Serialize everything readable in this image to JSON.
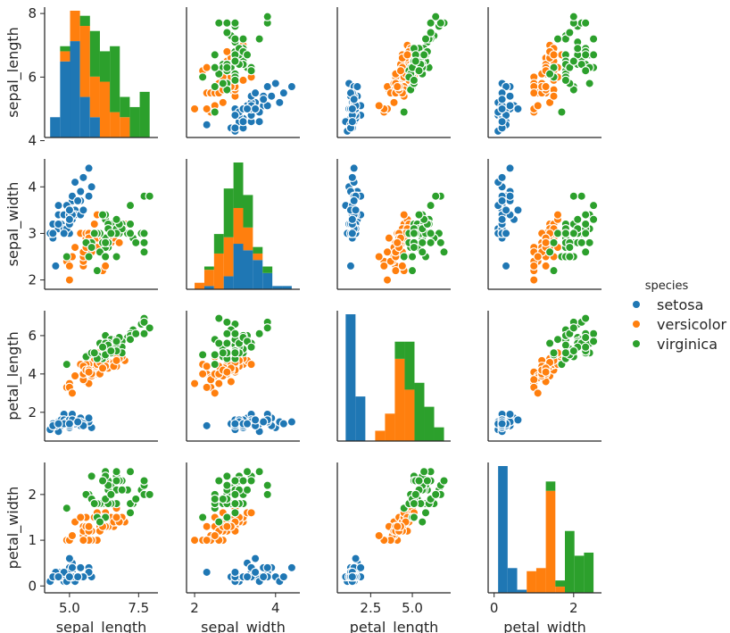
{
  "chart_data": {
    "type": "scatter",
    "kind": "pairplot",
    "hue": "species",
    "variables": [
      "sepal_length",
      "sepal_width",
      "petal_length",
      "petal_width"
    ],
    "legend": {
      "title": "species",
      "placement": "right",
      "entries": [
        {
          "name": "setosa",
          "color": "#1f77b4"
        },
        {
          "name": "versicolor",
          "color": "#ff7f0e"
        },
        {
          "name": "virginica",
          "color": "#2ca02c"
        }
      ]
    },
    "axes": {
      "sepal_length": {
        "range": [
          4.1,
          8.2
        ],
        "ticks": [
          4,
          6,
          8
        ],
        "tick_labels": [
          "4",
          "6",
          "8"
        ],
        "x_ticks": [
          5.0,
          7.5
        ],
        "x_tick_labels": [
          "5.0",
          "7.5"
        ]
      },
      "sepal_width": {
        "range": [
          1.8,
          4.6
        ],
        "ticks": [
          2,
          3,
          4
        ],
        "tick_labels": [
          "2",
          "3",
          "4"
        ],
        "x_ticks": [
          2,
          4
        ],
        "x_tick_labels": [
          "2",
          "4"
        ]
      },
      "petal_length": {
        "range": [
          0.5,
          7.3
        ],
        "ticks": [
          2,
          4,
          6
        ],
        "tick_labels": [
          "2",
          "4",
          "6"
        ],
        "x_ticks": [
          2.5,
          5.0
        ],
        "x_tick_labels": [
          "2.5",
          "5.0"
        ]
      },
      "petal_width": {
        "range": [
          -0.15,
          2.7
        ],
        "ticks": [
          0,
          1,
          2
        ],
        "tick_labels": [
          "0",
          "1",
          "2"
        ],
        "x_ticks": [
          0,
          2
        ],
        "x_tick_labels": [
          "0",
          "2"
        ]
      }
    },
    "grid": false,
    "histograms": {
      "sepal_length": {
        "bins": [
          4.3,
          4.66,
          5.02,
          5.38,
          5.74,
          6.1,
          6.46,
          6.82,
          7.18,
          7.54,
          7.9
        ],
        "series": [
          {
            "name": "setosa",
            "counts": [
              4,
              15,
              19,
              8,
              4,
              0,
              0,
              0,
              0,
              0
            ]
          },
          {
            "name": "versicolor",
            "counts": [
              0,
              2,
              6,
              14,
              8,
              11,
              5,
              4,
              0,
              0
            ]
          },
          {
            "name": "virginica",
            "counts": [
              0,
              1,
              0,
              2,
              9,
              6,
              13,
              4,
              6,
              9
            ]
          }
        ]
      },
      "sepal_width": {
        "bins": [
          2.0,
          2.24,
          2.48,
          2.72,
          2.96,
          3.2,
          3.44,
          3.68,
          3.92,
          4.16,
          4.4
        ],
        "series": [
          {
            "name": "setosa",
            "counts": [
              0,
              1,
              0,
              4,
              14,
              12,
              9,
              5,
              1,
              1
            ]
          },
          {
            "name": "versicolor",
            "counts": [
              2,
              5,
              11,
              12,
              11,
              7,
              2,
              0,
              0,
              0
            ]
          },
          {
            "name": "virginica",
            "counts": [
              0,
              1,
              6,
              15,
              14,
              10,
              2,
              2,
              0,
              0
            ]
          }
        ]
      },
      "petal_length": {
        "bins": [
          1.0,
          1.59,
          2.18,
          2.77,
          3.36,
          3.95,
          4.54,
          5.13,
          5.72,
          6.31,
          6.9
        ],
        "series": [
          {
            "name": "setosa",
            "counts": [
              37,
              13,
              0,
              0,
              0,
              0,
              0,
              0,
              0,
              0
            ]
          },
          {
            "name": "versicolor",
            "counts": [
              0,
              0,
              0,
              3,
              8,
              24,
              15,
              0,
              0,
              0
            ]
          },
          {
            "name": "virginica",
            "counts": [
              0,
              0,
              0,
              0,
              0,
              5,
              14,
              17,
              10,
              4
            ]
          }
        ]
      },
      "petal_width": {
        "bins": [
          0.1,
          0.34,
          0.58,
          0.82,
          1.06,
          1.3,
          1.54,
          1.78,
          2.02,
          2.26,
          2.5
        ],
        "series": [
          {
            "name": "setosa",
            "counts": [
              41,
              8,
              1,
              0,
              0,
              0,
              0,
              0,
              0,
              0
            ]
          },
          {
            "name": "versicolor",
            "counts": [
              0,
              0,
              0,
              7,
              8,
              33,
              2,
              0,
              0,
              0
            ]
          },
          {
            "name": "virginica",
            "counts": [
              0,
              0,
              0,
              0,
              0,
              3,
              2,
              20,
              12,
              13
            ]
          }
        ]
      }
    },
    "points": {
      "setosa": [
        [
          5.1,
          3.5,
          1.4,
          0.2
        ],
        [
          4.9,
          3.0,
          1.4,
          0.2
        ],
        [
          4.7,
          3.2,
          1.3,
          0.2
        ],
        [
          4.6,
          3.1,
          1.5,
          0.2
        ],
        [
          5.0,
          3.6,
          1.4,
          0.2
        ],
        [
          5.4,
          3.9,
          1.7,
          0.4
        ],
        [
          4.6,
          3.4,
          1.4,
          0.3
        ],
        [
          5.0,
          3.4,
          1.5,
          0.2
        ],
        [
          4.4,
          2.9,
          1.4,
          0.2
        ],
        [
          4.9,
          3.1,
          1.5,
          0.1
        ],
        [
          5.4,
          3.7,
          1.5,
          0.2
        ],
        [
          4.8,
          3.4,
          1.6,
          0.2
        ],
        [
          4.8,
          3.0,
          1.4,
          0.1
        ],
        [
          4.3,
          3.0,
          1.1,
          0.1
        ],
        [
          5.8,
          4.0,
          1.2,
          0.2
        ],
        [
          5.7,
          4.4,
          1.5,
          0.4
        ],
        [
          5.4,
          3.9,
          1.3,
          0.4
        ],
        [
          5.1,
          3.5,
          1.4,
          0.3
        ],
        [
          5.7,
          3.8,
          1.7,
          0.3
        ],
        [
          5.1,
          3.8,
          1.5,
          0.3
        ],
        [
          5.4,
          3.4,
          1.7,
          0.2
        ],
        [
          5.1,
          3.7,
          1.5,
          0.4
        ],
        [
          4.6,
          3.6,
          1.0,
          0.2
        ],
        [
          5.1,
          3.3,
          1.7,
          0.5
        ],
        [
          4.8,
          3.4,
          1.9,
          0.2
        ],
        [
          5.0,
          3.0,
          1.6,
          0.2
        ],
        [
          5.0,
          3.4,
          1.6,
          0.4
        ],
        [
          5.2,
          3.5,
          1.5,
          0.2
        ],
        [
          5.2,
          3.4,
          1.4,
          0.2
        ],
        [
          4.7,
          3.2,
          1.6,
          0.2
        ],
        [
          4.8,
          3.1,
          1.6,
          0.2
        ],
        [
          5.4,
          3.4,
          1.5,
          0.4
        ],
        [
          5.2,
          4.1,
          1.5,
          0.1
        ],
        [
          5.5,
          4.2,
          1.4,
          0.2
        ],
        [
          4.9,
          3.1,
          1.5,
          0.2
        ],
        [
          5.0,
          3.2,
          1.2,
          0.2
        ],
        [
          5.5,
          3.5,
          1.3,
          0.2
        ],
        [
          4.9,
          3.6,
          1.4,
          0.1
        ],
        [
          4.4,
          3.0,
          1.3,
          0.2
        ],
        [
          5.1,
          3.4,
          1.5,
          0.2
        ],
        [
          5.0,
          3.5,
          1.3,
          0.3
        ],
        [
          4.5,
          2.3,
          1.3,
          0.3
        ],
        [
          4.4,
          3.2,
          1.3,
          0.2
        ],
        [
          5.0,
          3.5,
          1.6,
          0.6
        ],
        [
          5.1,
          3.8,
          1.9,
          0.4
        ],
        [
          4.8,
          3.0,
          1.4,
          0.3
        ],
        [
          5.1,
          3.8,
          1.6,
          0.2
        ],
        [
          4.6,
          3.2,
          1.4,
          0.2
        ],
        [
          5.3,
          3.7,
          1.5,
          0.2
        ],
        [
          5.0,
          3.3,
          1.4,
          0.2
        ]
      ],
      "versicolor": [
        [
          7.0,
          3.2,
          4.7,
          1.4
        ],
        [
          6.4,
          3.2,
          4.5,
          1.5
        ],
        [
          6.9,
          3.1,
          4.9,
          1.5
        ],
        [
          5.5,
          2.3,
          4.0,
          1.3
        ],
        [
          6.5,
          2.8,
          4.6,
          1.5
        ],
        [
          5.7,
          2.8,
          4.5,
          1.3
        ],
        [
          6.3,
          3.3,
          4.7,
          1.6
        ],
        [
          4.9,
          2.4,
          3.3,
          1.0
        ],
        [
          6.6,
          2.9,
          4.6,
          1.3
        ],
        [
          5.2,
          2.7,
          3.9,
          1.4
        ],
        [
          5.0,
          2.0,
          3.5,
          1.0
        ],
        [
          5.9,
          3.0,
          4.2,
          1.5
        ],
        [
          6.0,
          2.2,
          4.0,
          1.0
        ],
        [
          6.1,
          2.9,
          4.7,
          1.4
        ],
        [
          5.6,
          2.9,
          3.6,
          1.3
        ],
        [
          6.7,
          3.1,
          4.4,
          1.4
        ],
        [
          5.6,
          3.0,
          4.5,
          1.5
        ],
        [
          5.8,
          2.7,
          4.1,
          1.0
        ],
        [
          6.2,
          2.2,
          4.5,
          1.5
        ],
        [
          5.6,
          2.5,
          3.9,
          1.1
        ],
        [
          5.9,
          3.2,
          4.8,
          1.8
        ],
        [
          6.1,
          2.8,
          4.0,
          1.3
        ],
        [
          6.3,
          2.5,
          4.9,
          1.5
        ],
        [
          6.1,
          2.8,
          4.7,
          1.2
        ],
        [
          6.4,
          2.9,
          4.3,
          1.3
        ],
        [
          6.6,
          3.0,
          4.4,
          1.4
        ],
        [
          6.8,
          2.8,
          4.8,
          1.4
        ],
        [
          6.7,
          3.0,
          5.0,
          1.7
        ],
        [
          6.0,
          2.9,
          4.5,
          1.5
        ],
        [
          5.7,
          2.6,
          3.5,
          1.0
        ],
        [
          5.5,
          2.4,
          3.8,
          1.1
        ],
        [
          5.5,
          2.4,
          3.7,
          1.0
        ],
        [
          5.8,
          2.7,
          3.9,
          1.2
        ],
        [
          6.0,
          2.7,
          5.1,
          1.6
        ],
        [
          5.4,
          3.0,
          4.5,
          1.5
        ],
        [
          6.0,
          3.4,
          4.5,
          1.6
        ],
        [
          6.7,
          3.1,
          4.7,
          1.5
        ],
        [
          6.3,
          2.3,
          4.4,
          1.3
        ],
        [
          5.6,
          3.0,
          4.1,
          1.3
        ],
        [
          5.5,
          2.5,
          4.0,
          1.3
        ],
        [
          5.5,
          2.6,
          4.4,
          1.2
        ],
        [
          6.1,
          3.0,
          4.6,
          1.4
        ],
        [
          5.8,
          2.6,
          4.0,
          1.2
        ],
        [
          5.0,
          2.3,
          3.3,
          1.0
        ],
        [
          5.6,
          2.7,
          4.2,
          1.3
        ],
        [
          5.7,
          3.0,
          4.2,
          1.2
        ],
        [
          5.7,
          2.9,
          4.2,
          1.3
        ],
        [
          6.2,
          2.9,
          4.3,
          1.3
        ],
        [
          5.1,
          2.5,
          3.0,
          1.1
        ],
        [
          5.7,
          2.8,
          4.1,
          1.3
        ]
      ],
      "virginica": [
        [
          6.3,
          3.3,
          6.0,
          2.5
        ],
        [
          5.8,
          2.7,
          5.1,
          1.9
        ],
        [
          7.1,
          3.0,
          5.9,
          2.1
        ],
        [
          6.3,
          2.9,
          5.6,
          1.8
        ],
        [
          6.5,
          3.0,
          5.8,
          2.2
        ],
        [
          7.6,
          3.0,
          6.6,
          2.1
        ],
        [
          4.9,
          2.5,
          4.5,
          1.7
        ],
        [
          7.3,
          2.9,
          6.3,
          1.8
        ],
        [
          6.7,
          2.5,
          5.8,
          1.8
        ],
        [
          7.2,
          3.6,
          6.1,
          2.5
        ],
        [
          6.5,
          3.2,
          5.1,
          2.0
        ],
        [
          6.4,
          2.7,
          5.3,
          1.9
        ],
        [
          6.8,
          3.0,
          5.5,
          2.1
        ],
        [
          5.7,
          2.5,
          5.0,
          2.0
        ],
        [
          5.8,
          2.8,
          5.1,
          2.4
        ],
        [
          6.4,
          3.2,
          5.3,
          2.3
        ],
        [
          6.5,
          3.0,
          5.5,
          1.8
        ],
        [
          7.7,
          3.8,
          6.7,
          2.2
        ],
        [
          7.7,
          2.6,
          6.9,
          2.3
        ],
        [
          6.0,
          2.2,
          5.0,
          1.5
        ],
        [
          6.9,
          3.2,
          5.7,
          2.3
        ],
        [
          5.6,
          2.8,
          4.9,
          2.0
        ],
        [
          7.7,
          2.8,
          6.7,
          2.0
        ],
        [
          6.3,
          2.7,
          4.9,
          1.8
        ],
        [
          6.7,
          3.3,
          5.7,
          2.1
        ],
        [
          7.2,
          3.2,
          6.0,
          1.8
        ],
        [
          6.2,
          2.8,
          4.8,
          1.8
        ],
        [
          6.1,
          3.0,
          4.9,
          1.8
        ],
        [
          6.4,
          2.8,
          5.6,
          2.1
        ],
        [
          7.2,
          3.0,
          5.8,
          1.6
        ],
        [
          7.4,
          2.8,
          6.1,
          1.9
        ],
        [
          7.9,
          3.8,
          6.4,
          2.0
        ],
        [
          6.4,
          2.8,
          5.6,
          2.2
        ],
        [
          6.3,
          2.8,
          5.1,
          1.5
        ],
        [
          6.1,
          2.6,
          5.6,
          1.4
        ],
        [
          7.7,
          3.0,
          6.1,
          2.3
        ],
        [
          6.3,
          3.4,
          5.6,
          2.4
        ],
        [
          6.4,
          3.1,
          5.5,
          1.8
        ],
        [
          6.0,
          3.0,
          4.8,
          1.8
        ],
        [
          6.9,
          3.1,
          5.4,
          2.1
        ],
        [
          6.7,
          3.1,
          5.6,
          2.4
        ],
        [
          6.9,
          3.1,
          5.1,
          2.3
        ],
        [
          5.8,
          2.7,
          5.1,
          1.9
        ],
        [
          6.8,
          3.2,
          5.9,
          2.3
        ],
        [
          6.7,
          3.3,
          5.7,
          2.5
        ],
        [
          6.7,
          3.0,
          5.2,
          2.3
        ],
        [
          6.3,
          2.5,
          5.0,
          1.9
        ],
        [
          6.5,
          3.0,
          5.2,
          2.0
        ],
        [
          6.2,
          3.4,
          5.4,
          2.3
        ],
        [
          5.9,
          3.0,
          5.1,
          1.8
        ]
      ]
    }
  }
}
